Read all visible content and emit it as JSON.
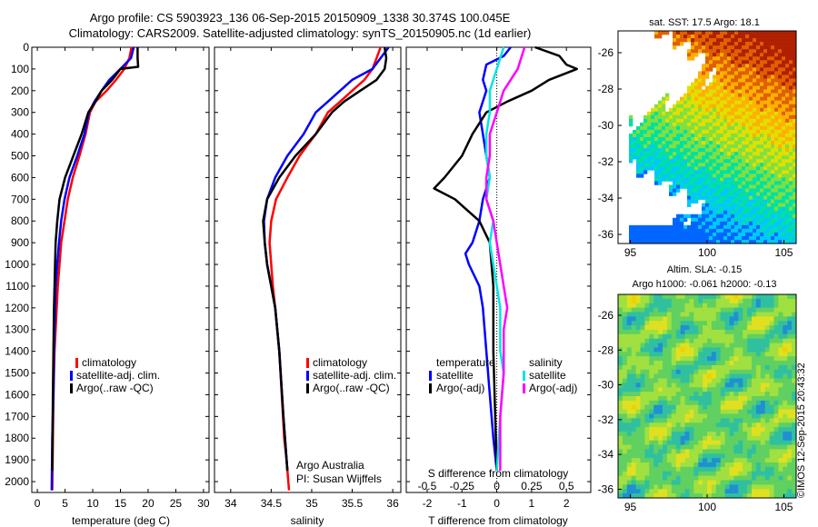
{
  "header": {
    "title_line1": "Argo profile: CS 5903923_136 06-Sep-2015 20150909_1338 30.374S 100.045E",
    "title_line2": "Climatology: CARS2009. Satellite-adjusted climatology: synTS_20150905.nc (1d earlier)"
  },
  "footer": {
    "stamp": "©IMOS 12-Sep-2015 20:43:32"
  },
  "depth_ticks": [
    0,
    100,
    200,
    300,
    400,
    500,
    600,
    700,
    800,
    900,
    1000,
    1100,
    1200,
    1300,
    1400,
    1500,
    1600,
    1700,
    1800,
    1900,
    2000
  ],
  "colors": {
    "climatology": "#ff0000",
    "satellite": "#0000ff",
    "argo": "#000000",
    "sal_satellite": "#00e5e5",
    "sal_argo": "#ff00ff"
  },
  "panels": {
    "temperature": {
      "xlabel": "temperature (deg C)",
      "xlim": [
        -1,
        31
      ],
      "xticks": [
        "0",
        "5",
        "10",
        "15",
        "20",
        "25",
        "30"
      ],
      "xtick_values": [
        0,
        5,
        10,
        15,
        20,
        25,
        30
      ],
      "legend": [
        "climatology",
        "satellite-adj. clim.",
        "Argo(..raw -QC)"
      ]
    },
    "salinity": {
      "xlabel": "salinity",
      "xlim": [
        33.8,
        36.1
      ],
      "xticks": [
        "34",
        "34.5",
        "35",
        "35.5",
        "36"
      ],
      "xtick_values": [
        34,
        34.5,
        35,
        35.5,
        36
      ],
      "legend": [
        "climatology",
        "satellite-adj. clim.",
        "Argo(..raw -QC)"
      ],
      "note_line1": "Argo Australia",
      "note_line2": "PI: Susan Wijffels"
    },
    "difference": {
      "xlabel": "T difference from climatology",
      "top_label": "S difference from climatology",
      "xlim": [
        -2.6,
        2.7
      ],
      "t_xticks": [
        "-2",
        "-1",
        "0",
        "1",
        "2"
      ],
      "t_xtick_values": [
        -2,
        -1,
        0,
        1,
        2
      ],
      "s_ticks": [
        "-0.5",
        "-0.25",
        "0",
        "0.25",
        "0.5"
      ],
      "s_tick_positions": [
        -2,
        -1,
        0,
        1,
        2
      ],
      "legend_temperature_title": "temperature",
      "legend_salinity_title": "salinity",
      "legend_temperature": [
        "satellite",
        "Argo(-adj)"
      ],
      "legend_salinity": [
        "satellite",
        "Argo(-adj)"
      ]
    }
  },
  "map_sst": {
    "title": "sat. SST: 17.5 Argo: 18.1",
    "xticks": [
      "95",
      "100",
      "105"
    ],
    "xtick_values": [
      95,
      100,
      105
    ],
    "yticks": [
      "-26",
      "-28",
      "-30",
      "-32",
      "-34",
      "-36"
    ],
    "ytick_values": [
      -26,
      -28,
      -30,
      -32,
      -34,
      -36
    ],
    "lon_range": [
      94.2,
      105.8
    ],
    "lat_range": [
      -36.5,
      -24.8
    ]
  },
  "map_sla": {
    "title_line1": "Altim. SLA: -0.15",
    "title_line2": "Argo h1000: -0.061 h2000: -0.13",
    "xticks": [
      "95",
      "100",
      "105"
    ],
    "xtick_values": [
      95,
      100,
      105
    ],
    "yticks": [
      "-26",
      "-28",
      "-30",
      "-32",
      "-34",
      "-36"
    ],
    "ytick_values": [
      -26,
      -28,
      -30,
      -32,
      -34,
      -36
    ],
    "lon_range": [
      94.2,
      105.8
    ],
    "lat_range": [
      -36.5,
      -24.8
    ]
  },
  "chart_data": [
    {
      "type": "line",
      "title": "",
      "xlabel": "temperature (deg C)",
      "ylabel": "",
      "xlim": [
        -1,
        31
      ],
      "ylim": [
        2050,
        0
      ],
      "series": [
        {
          "name": "climatology",
          "color": "#ff0000",
          "x": [
            17.0,
            16.6,
            15.7,
            14.2,
            12.5,
            10.5,
            9.5,
            8.7,
            7.6,
            6.4,
            5.5,
            4.9,
            4.3,
            4.0,
            3.7,
            3.5,
            3.3,
            3.1,
            3.0,
            2.9,
            2.8,
            2.7
          ],
          "y": [
            0,
            50,
            100,
            150,
            200,
            250,
            300,
            400,
            500,
            600,
            700,
            800,
            900,
            1000,
            1100,
            1200,
            1300,
            1400,
            1500,
            1600,
            1800,
            2040
          ]
        },
        {
          "name": "satellite-adj. clim.",
          "color": "#0000ff",
          "x": [
            17.4,
            16.9,
            15.0,
            13.0,
            11.6,
            10.3,
            9.3,
            8.5,
            7.2,
            5.8,
            4.9,
            4.3,
            3.9,
            3.6,
            3.3,
            3.2,
            3.0,
            2.9,
            2.7,
            2.6
          ],
          "y": [
            0,
            50,
            100,
            150,
            200,
            250,
            300,
            400,
            500,
            600,
            700,
            800,
            900,
            1000,
            1100,
            1200,
            1400,
            1600,
            1800,
            2040
          ]
        },
        {
          "name": "Argo(..raw -QC)",
          "color": "#000000",
          "x": [
            18.1,
            18.1,
            18.2,
            15.0,
            13.5,
            11.6,
            10.5,
            9.2,
            8.0,
            6.5,
            5.0,
            4.0,
            3.6,
            3.3,
            3.2,
            3.1,
            3.0,
            2.9,
            2.8,
            2.7
          ],
          "y": [
            0,
            50,
            90,
            100,
            150,
            200,
            250,
            300,
            400,
            500,
            600,
            700,
            800,
            900,
            1000,
            1100,
            1200,
            1400,
            1600,
            1950
          ]
        }
      ]
    },
    {
      "type": "line",
      "title": "",
      "xlabel": "salinity",
      "ylabel": "",
      "xlim": [
        33.8,
        36.1
      ],
      "ylim": [
        2050,
        0
      ],
      "series": [
        {
          "name": "climatology",
          "color": "#ff0000",
          "x": [
            35.85,
            35.8,
            35.75,
            35.65,
            35.5,
            35.35,
            35.2,
            35.05,
            34.85,
            34.7,
            34.56,
            34.5,
            34.48,
            34.5,
            34.52,
            34.55,
            34.6,
            34.63,
            34.66,
            34.69,
            34.72
          ],
          "y": [
            0,
            50,
            100,
            150,
            200,
            250,
            300,
            400,
            500,
            600,
            700,
            800,
            900,
            1000,
            1100,
            1200,
            1400,
            1600,
            1800,
            1900,
            2040
          ]
        },
        {
          "name": "satellite-adj. clim.",
          "color": "#0000ff",
          "x": [
            35.95,
            35.85,
            35.75,
            35.5,
            35.35,
            35.2,
            35.05,
            34.9,
            34.7,
            34.55,
            34.45,
            34.41,
            34.42,
            34.45,
            34.5,
            34.55,
            34.6,
            34.65,
            34.7
          ],
          "y": [
            0,
            50,
            100,
            150,
            200,
            250,
            300,
            400,
            500,
            600,
            700,
            800,
            900,
            1000,
            1100,
            1200,
            1400,
            1700,
            1950
          ]
        },
        {
          "name": "Argo(..raw -QC)",
          "color": "#000000",
          "x": [
            35.9,
            35.92,
            35.9,
            35.8,
            35.6,
            35.4,
            35.25,
            35.05,
            34.8,
            34.6,
            34.45,
            34.4,
            34.42,
            34.45,
            34.5,
            34.55,
            34.6,
            34.65,
            34.7
          ],
          "y": [
            0,
            50,
            100,
            150,
            200,
            250,
            300,
            400,
            500,
            600,
            700,
            800,
            900,
            1000,
            1100,
            1200,
            1400,
            1700,
            1950
          ]
        }
      ]
    },
    {
      "type": "line",
      "title": "",
      "xlabel": "T difference from climatology",
      "ylabel": "",
      "xlim": [
        -2.6,
        2.7
      ],
      "ylim": [
        2050,
        0
      ],
      "series": [
        {
          "name": "satellite",
          "color": "#0000ff",
          "x": [
            0.4,
            0.2,
            -0.3,
            -0.4,
            -0.3,
            -0.5,
            -0.4,
            -0.3,
            -0.2,
            -0.4,
            -0.5,
            -0.6,
            -0.7,
            -0.9,
            -0.8,
            -0.5,
            -0.4,
            -0.3,
            -0.2,
            -0.1,
            0.0
          ],
          "y": [
            0,
            40,
            80,
            150,
            200,
            300,
            400,
            500,
            600,
            700,
            800,
            850,
            900,
            950,
            1000,
            1100,
            1200,
            1400,
            1600,
            1800,
            1950
          ]
        },
        {
          "name": "Argo(-adj)",
          "color": "#000000",
          "x": [
            1.1,
            1.8,
            2.0,
            2.3,
            1.5,
            1.0,
            0.3,
            -0.3,
            -0.7,
            -1.0,
            -1.5,
            -1.8,
            -1.2,
            -0.5,
            -0.2,
            -0.1,
            -0.1,
            0.0
          ],
          "y": [
            0,
            40,
            80,
            100,
            150,
            200,
            250,
            300,
            400,
            500,
            600,
            650,
            700,
            800,
            900,
            1100,
            1400,
            1950
          ]
        },
        {
          "name": "salinity satellite",
          "color": "#00e5e5",
          "x": [
            0.2,
            0.0,
            -0.2,
            -0.2,
            -0.3,
            -0.3,
            -0.2,
            -0.3,
            -0.1,
            -0.2,
            -0.1,
            0.0,
            0.1,
            0.1,
            0.1,
            0.2,
            0.1,
            0.0
          ],
          "y": [
            0,
            100,
            200,
            300,
            400,
            500,
            600,
            700,
            800,
            900,
            1000,
            1100,
            1200,
            1300,
            1400,
            1500,
            1700,
            1950
          ]
        },
        {
          "name": "salinity Argo(-adj)",
          "color": "#ff00ff",
          "x": [
            0.8,
            0.6,
            0.2,
            0.0,
            -0.2,
            -0.2,
            -0.3,
            -0.3,
            -0.1,
            0.0,
            0.1,
            0.2,
            0.3,
            0.2,
            0.2,
            0.1,
            0.1
          ],
          "y": [
            0,
            100,
            200,
            300,
            400,
            500,
            600,
            700,
            800,
            900,
            1000,
            1100,
            1200,
            1300,
            1500,
            1700,
            1950
          ]
        }
      ]
    },
    {
      "type": "heatmap",
      "title": "sat. SST: 17.5 Argo: 18.1",
      "xlabel": "",
      "ylabel": "",
      "xlim": [
        94.2,
        105.8
      ],
      "ylim": [
        -36.5,
        -24.8
      ],
      "colormap": [
        "#0066ff",
        "#00c8ff",
        "#00e0a0",
        "#80e040",
        "#e0e000",
        "#ffb000",
        "#e06000",
        "#b02000"
      ],
      "mask_color": "#ffffff"
    },
    {
      "type": "heatmap",
      "title": "Altim. SLA: -0.15",
      "xlabel": "",
      "ylabel": "",
      "xlim": [
        94.2,
        105.8
      ],
      "ylim": [
        -36.5,
        -24.8
      ],
      "colormap": [
        "#2090d0",
        "#30c0a0",
        "#60d060",
        "#a0e040",
        "#e0e020",
        "#f0d000"
      ]
    }
  ]
}
